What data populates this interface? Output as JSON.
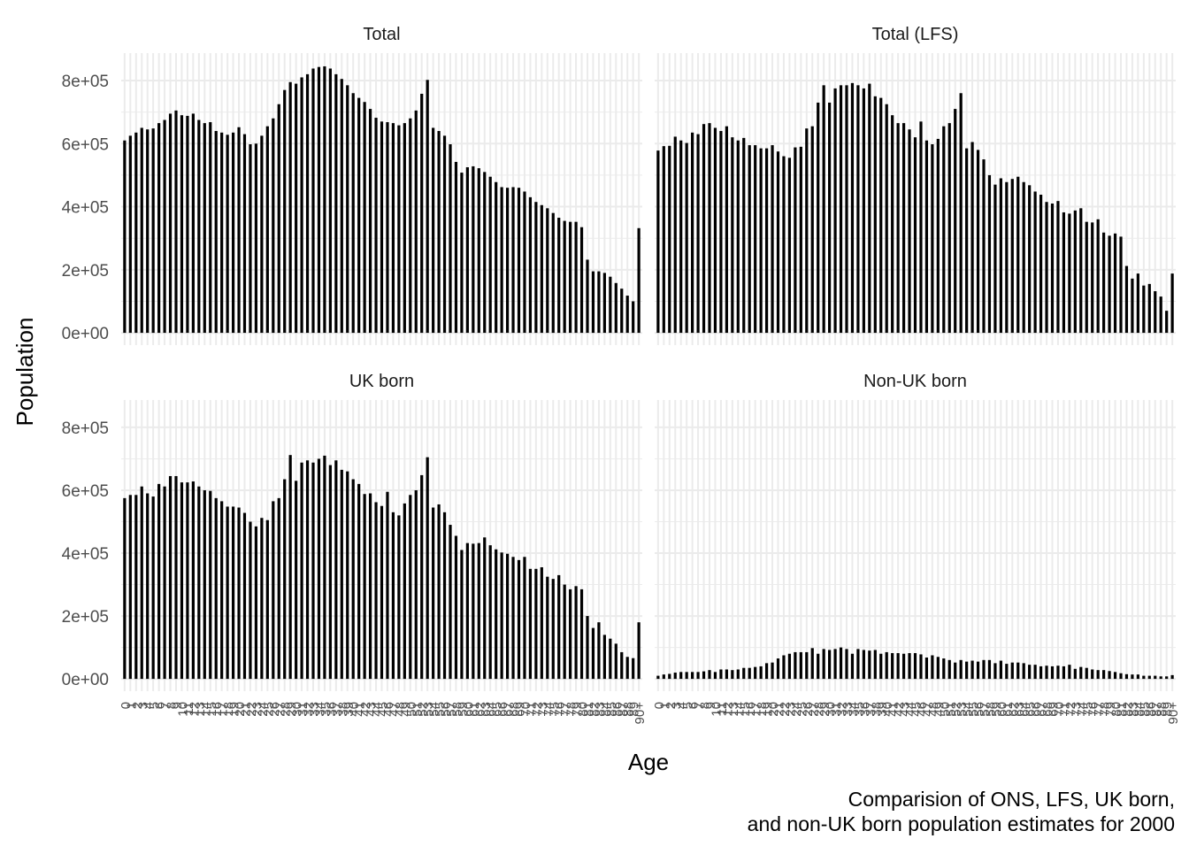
{
  "ylabel": "Population",
  "xlabel": "Age",
  "caption": [
    "Comparision of ONS, LFS, UK born,",
    "and non-UK born population estimates for 2000"
  ],
  "chart_data": [
    {
      "type": "bar",
      "title": "Total",
      "color": "#000000",
      "ylim": [
        -39000,
        887000
      ],
      "yticks": [
        {
          "value": 0,
          "label": "0e+00"
        },
        {
          "value": 200000,
          "label": "2e+05"
        },
        {
          "value": 400000,
          "label": "4e+05"
        },
        {
          "value": 600000,
          "label": "6e+05"
        },
        {
          "value": 800000,
          "label": "8e+05"
        }
      ],
      "grid": true,
      "values": [
        610000,
        625000,
        635000,
        650000,
        645000,
        648000,
        665000,
        675000,
        695000,
        705000,
        690000,
        688000,
        695000,
        675000,
        665000,
        668000,
        640000,
        635000,
        628000,
        635000,
        652000,
        630000,
        598000,
        600000,
        625000,
        655000,
        680000,
        725000,
        770000,
        795000,
        790000,
        810000,
        820000,
        838000,
        843000,
        845000,
        838000,
        820000,
        805000,
        785000,
        760000,
        745000,
        732000,
        710000,
        682000,
        670000,
        668000,
        665000,
        658000,
        665000,
        680000,
        705000,
        758000,
        802000,
        650000,
        640000,
        625000,
        598000,
        542000,
        508000,
        525000,
        528000,
        522000,
        510000,
        495000,
        478000,
        462000,
        460000,
        462000,
        460000,
        448000,
        430000,
        415000,
        405000,
        395000,
        380000,
        365000,
        355000,
        352000,
        352000,
        335000,
        232000,
        195000,
        195000,
        190000,
        178000,
        158000,
        140000,
        118000,
        100000,
        332000
      ]
    },
    {
      "type": "bar",
      "title": "Total (LFS)",
      "color": "#000000",
      "ylim": [
        -39000,
        887000
      ],
      "values": [
        578000,
        592000,
        593000,
        622000,
        610000,
        602000,
        635000,
        630000,
        662000,
        665000,
        650000,
        640000,
        655000,
        620000,
        610000,
        618000,
        595000,
        595000,
        585000,
        585000,
        595000,
        575000,
        560000,
        555000,
        588000,
        590000,
        648000,
        655000,
        730000,
        785000,
        730000,
        775000,
        785000,
        785000,
        792000,
        785000,
        775000,
        790000,
        750000,
        745000,
        725000,
        690000,
        665000,
        665000,
        645000,
        620000,
        670000,
        610000,
        598000,
        615000,
        655000,
        665000,
        710000,
        760000,
        585000,
        605000,
        580000,
        550000,
        500000,
        470000,
        490000,
        478000,
        488000,
        495000,
        478000,
        468000,
        448000,
        438000,
        415000,
        410000,
        418000,
        382000,
        378000,
        388000,
        395000,
        352000,
        350000,
        360000,
        318000,
        308000,
        315000,
        305000,
        212000,
        172000,
        188000,
        150000,
        155000,
        132000,
        115000,
        70000,
        188000
      ]
    },
    {
      "type": "bar",
      "title": "UK born",
      "color": "#000000",
      "ylim": [
        -39000,
        887000
      ],
      "categories": [
        "0",
        "1",
        "2",
        "3",
        "4",
        "5",
        "6",
        "7",
        "8",
        "9",
        "10",
        "11",
        "12",
        "13",
        "14",
        "15",
        "16",
        "17",
        "18",
        "19",
        "20",
        "21",
        "22",
        "23",
        "24",
        "25",
        "26",
        "27",
        "28",
        "29",
        "30",
        "31",
        "32",
        "33",
        "34",
        "35",
        "36",
        "37",
        "38",
        "39",
        "40",
        "41",
        "42",
        "43",
        "44",
        "45",
        "46",
        "47",
        "48",
        "49",
        "50",
        "51",
        "52",
        "53",
        "54",
        "55",
        "56",
        "57",
        "58",
        "59",
        "60",
        "61",
        "62",
        "63",
        "64",
        "65",
        "66",
        "67",
        "68",
        "69",
        "70",
        "71",
        "72",
        "73",
        "74",
        "75",
        "76",
        "77",
        "78",
        "79",
        "80",
        "81",
        "82",
        "83",
        "84",
        "85",
        "86",
        "87",
        "88",
        "89",
        "90+"
      ],
      "values": [
        575000,
        585000,
        585000,
        612000,
        590000,
        580000,
        620000,
        612000,
        645000,
        645000,
        625000,
        625000,
        628000,
        612000,
        600000,
        598000,
        575000,
        565000,
        548000,
        548000,
        545000,
        528000,
        500000,
        485000,
        512000,
        505000,
        565000,
        575000,
        635000,
        712000,
        630000,
        688000,
        695000,
        688000,
        700000,
        710000,
        680000,
        695000,
        665000,
        660000,
        635000,
        620000,
        588000,
        590000,
        562000,
        550000,
        595000,
        530000,
        520000,
        558000,
        585000,
        600000,
        648000,
        705000,
        545000,
        555000,
        530000,
        490000,
        455000,
        410000,
        432000,
        430000,
        432000,
        450000,
        425000,
        412000,
        402000,
        398000,
        388000,
        378000,
        388000,
        350000,
        350000,
        355000,
        325000,
        318000,
        330000,
        300000,
        285000,
        295000,
        285000,
        200000,
        162000,
        180000,
        140000,
        128000,
        112000,
        85000,
        70000,
        66000,
        180000
      ]
    },
    {
      "type": "bar",
      "title": "Non-UK born",
      "color": "#000000",
      "ylim": [
        -39000,
        887000
      ],
      "categories": [
        "0",
        "1",
        "2",
        "3",
        "4",
        "5",
        "6",
        "7",
        "8",
        "9",
        "10",
        "11",
        "12",
        "13",
        "14",
        "15",
        "16",
        "17",
        "18",
        "19",
        "20",
        "21",
        "22",
        "23",
        "24",
        "25",
        "26",
        "27",
        "28",
        "29",
        "30",
        "31",
        "32",
        "33",
        "34",
        "35",
        "36",
        "37",
        "38",
        "39",
        "40",
        "41",
        "42",
        "43",
        "44",
        "45",
        "46",
        "47",
        "48",
        "49",
        "50",
        "51",
        "52",
        "53",
        "54",
        "55",
        "56",
        "57",
        "58",
        "59",
        "60",
        "61",
        "62",
        "63",
        "64",
        "65",
        "66",
        "67",
        "68",
        "69",
        "70",
        "71",
        "72",
        "73",
        "74",
        "75",
        "76",
        "77",
        "78",
        "79",
        "80",
        "81",
        "82",
        "83",
        "84",
        "85",
        "86",
        "87",
        "88",
        "89",
        "90+"
      ],
      "values": [
        10000,
        14000,
        16000,
        20000,
        22000,
        22000,
        22000,
        22000,
        24000,
        28000,
        22000,
        30000,
        30000,
        28000,
        30000,
        35000,
        35000,
        38000,
        40000,
        50000,
        52000,
        65000,
        75000,
        80000,
        85000,
        85000,
        85000,
        98000,
        80000,
        95000,
        92000,
        95000,
        100000,
        95000,
        80000,
        95000,
        92000,
        90000,
        92000,
        80000,
        85000,
        82000,
        82000,
        80000,
        82000,
        82000,
        78000,
        68000,
        75000,
        70000,
        65000,
        60000,
        52000,
        60000,
        55000,
        58000,
        55000,
        60000,
        60000,
        50000,
        58000,
        48000,
        52000,
        52000,
        50000,
        45000,
        45000,
        40000,
        42000,
        40000,
        42000,
        40000,
        45000,
        32000,
        38000,
        35000,
        30000,
        28000,
        28000,
        25000,
        22000,
        18000,
        15000,
        14000,
        14000,
        10000,
        10000,
        10000,
        8000,
        8000,
        12000
      ]
    }
  ]
}
